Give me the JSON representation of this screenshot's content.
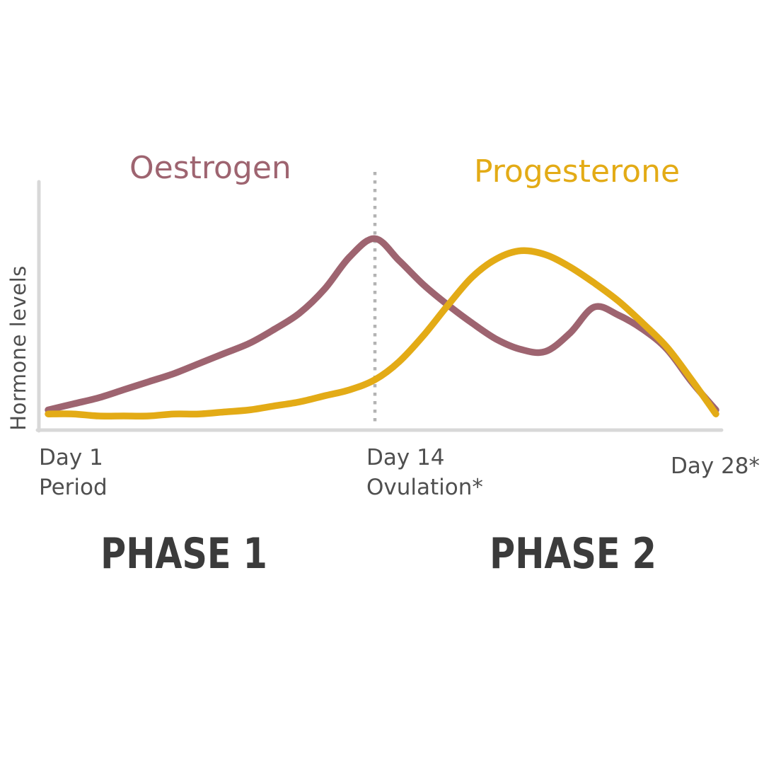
{
  "page": {
    "background": "#ffffff"
  },
  "legend": {
    "oestrogen_label": "Oestrogen",
    "progesterone_label": "Progesterone"
  },
  "axes": {
    "y_label": "Hormone levels"
  },
  "ticks": {
    "day1": {
      "line1": "Day 1",
      "line2": "Period"
    },
    "day14": {
      "line1": "Day 14",
      "line2": "Ovulation*"
    },
    "day28": {
      "line1": "Day 28*"
    }
  },
  "phases": {
    "phase1": "PHASE 1",
    "phase2": "PHASE 2"
  },
  "colors": {
    "oestrogen": "#9e6470",
    "progesterone": "#e3ab16",
    "axis_line": "#d8d8d8",
    "ovulation_line": "#b3b3b3",
    "tick_text": "#4f4f4f",
    "phase_text": "#3b3b3b"
  },
  "chart_data": {
    "type": "line",
    "title": "",
    "xlabel": "",
    "ylabel": "Hormone levels",
    "x_tick_labels": [
      "Day 1 (Period)",
      "Day 14 (Ovulation*)",
      "Day 28*"
    ],
    "x": [
      1,
      2,
      3,
      4,
      5,
      6,
      7,
      8,
      9,
      10,
      11,
      12,
      13,
      14,
      15,
      16,
      17,
      18,
      19,
      20,
      21,
      22,
      23,
      24,
      25,
      26,
      27,
      28
    ],
    "y_range_relative": [
      0,
      100
    ],
    "grid": false,
    "legend_position": "top",
    "annotations": [
      {
        "type": "vline",
        "x": 14,
        "style": "dotted",
        "label": "Day 14 Ovulation*"
      },
      {
        "type": "phase-band",
        "label": "PHASE 1",
        "x_range": [
          1,
          14
        ]
      },
      {
        "type": "phase-band",
        "label": "PHASE 2",
        "x_range": [
          14,
          28
        ]
      }
    ],
    "series": [
      {
        "name": "Oestrogen",
        "color": "#9e6470",
        "values": [
          10,
          13,
          16,
          20,
          24,
          28,
          33,
          38,
          43,
          50,
          58,
          70,
          86,
          95,
          84,
          72,
          62,
          53,
          45,
          40,
          39,
          48,
          61,
          57,
          50,
          40,
          24,
          10
        ]
      },
      {
        "name": "Progesterone",
        "color": "#e3ab16",
        "values": [
          8,
          8,
          7,
          7,
          7,
          8,
          8,
          9,
          10,
          12,
          14,
          17,
          20,
          25,
          34,
          47,
          62,
          76,
          85,
          89,
          87,
          81,
          73,
          64,
          53,
          41,
          25,
          8
        ]
      }
    ]
  }
}
